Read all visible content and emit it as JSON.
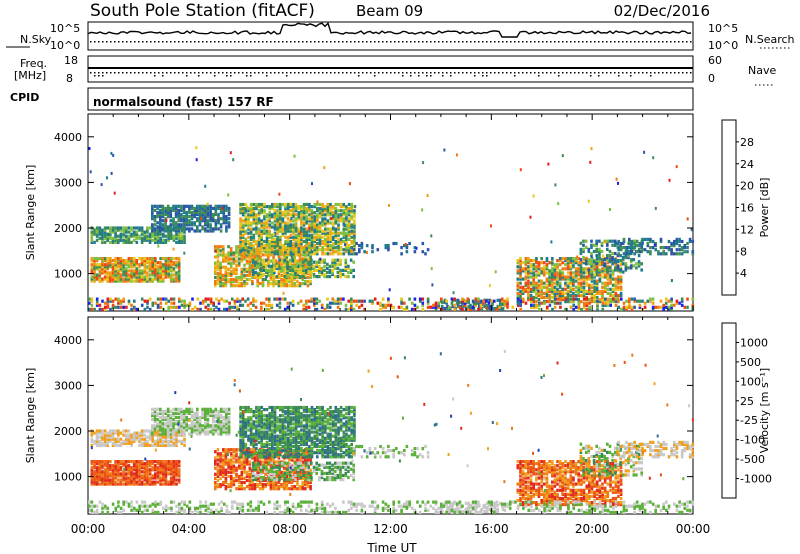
{
  "header": {
    "station": "South Pole Station (fitACF)",
    "beam": "Beam 09",
    "date": "02/Dec/2016"
  },
  "sky_panel": {
    "left_label": "N.Sky",
    "right_label": "N.Search",
    "left_ticks": [
      "10^5",
      "10^0"
    ],
    "right_ticks": [
      "10^5",
      "10^0"
    ]
  },
  "freq_panel": {
    "left_label_line1": "Freq.",
    "left_label_line2": "[MHz]",
    "right_label": "Nave",
    "left_ticks": [
      "18",
      "8"
    ],
    "right_ticks": [
      "60",
      "0"
    ]
  },
  "cpid_panel": {
    "label": "CPID",
    "text": "normalsound (fast) 157 RF"
  },
  "chart_data": [
    {
      "type": "heatmap",
      "name": "power",
      "ylabel": "Slant Range [km]",
      "ylim": [
        180,
        4500
      ],
      "yticks": [
        "1000",
        "2000",
        "3000",
        "4000"
      ],
      "colorbar": {
        "label": "Power [dB]",
        "ticks": [
          "4",
          "8",
          "12",
          "16",
          "20",
          "24",
          "28"
        ],
        "colors": [
          "#1a22e6",
          "#2a55a8",
          "#1f7a8c",
          "#3e8c55",
          "#7fbf3f",
          "#e6c81e",
          "#f0a014",
          "#f07814",
          "#ec4b14",
          "#e01e1e"
        ]
      }
    },
    {
      "type": "heatmap",
      "name": "velocity",
      "ylabel": "Slant Range [km]",
      "ylim": [
        180,
        4500
      ],
      "yticks": [
        "1000",
        "2000",
        "3000",
        "4000"
      ],
      "colorbar": {
        "label": "Velocity [m s⁻¹]",
        "ticks": [
          "1000",
          "500",
          "100",
          "25",
          "-25",
          "-100",
          "-500",
          "-1000"
        ],
        "colors": [
          "#2040b0",
          "#2f6f8a",
          "#3a8a55",
          "#5ab038",
          "#c8c8c8",
          "#f0a01e",
          "#f07814",
          "#ec5014",
          "#e02a1e"
        ]
      }
    }
  ],
  "time_axis": {
    "label": "Time UT",
    "ticks": [
      "00:00",
      "04:00",
      "08:00",
      "12:00",
      "16:00",
      "20:00",
      "00:00"
    ]
  }
}
